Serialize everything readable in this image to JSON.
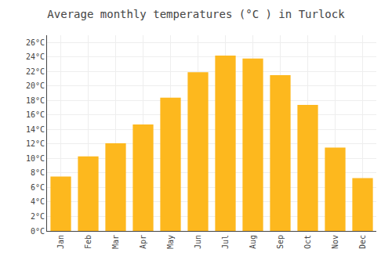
{
  "chart_data": {
    "type": "bar",
    "title": "Average monthly temperatures (°C ) in Turlock",
    "categories": [
      "Jan",
      "Feb",
      "Mar",
      "Apr",
      "May",
      "Jun",
      "Jul",
      "Aug",
      "Sep",
      "Oct",
      "Nov",
      "Dec"
    ],
    "values": [
      7.5,
      10.3,
      12.1,
      14.7,
      18.4,
      21.9,
      24.2,
      23.8,
      21.5,
      17.4,
      11.5,
      7.3
    ],
    "color": "#FDB81E",
    "ylim": [
      0,
      27
    ],
    "yticks": [
      {
        "value": 0,
        "label": "0°C"
      },
      {
        "value": 2,
        "label": "2°C"
      },
      {
        "value": 4,
        "label": "4°C"
      },
      {
        "value": 6,
        "label": "6°C"
      },
      {
        "value": 8,
        "label": "8°C"
      },
      {
        "value": 10,
        "label": "10°C"
      },
      {
        "value": 12,
        "label": "12°C"
      },
      {
        "value": 14,
        "label": "14°C"
      },
      {
        "value": 16,
        "label": "16°C"
      },
      {
        "value": 18,
        "label": "18°C"
      },
      {
        "value": 20,
        "label": "20°C"
      },
      {
        "value": 22,
        "label": "22°C"
      },
      {
        "value": 24,
        "label": "24°C"
      },
      {
        "value": 26,
        "label": "26°C"
      }
    ],
    "grid": true
  }
}
